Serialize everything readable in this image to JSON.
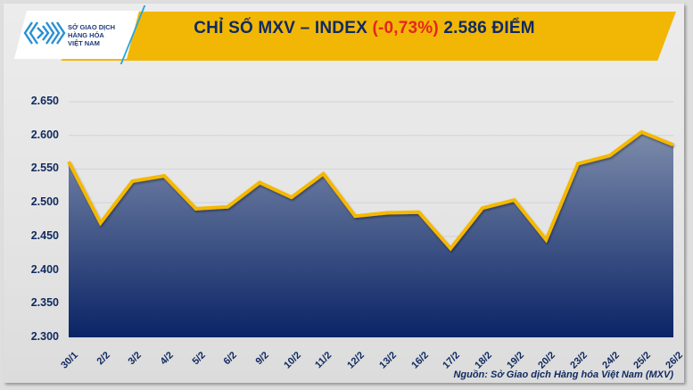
{
  "header": {
    "logo_text": [
      "SỞ GIAO DỊCH",
      "HÀNG HÓA",
      "VIỆT NAM"
    ],
    "title_prefix": "CHỈ SỐ MXV – INDEX",
    "title_change": "(-0,73%)",
    "title_suffix": "2.586 ĐIỂM"
  },
  "footer": {
    "source": "Nguồn: Sở Giao dịch Hàng hóa Việt Nam (MXV)"
  },
  "colors": {
    "banner": "#f2b705",
    "title": "#102a60",
    "negative": "#e52421",
    "line": "#f5b800",
    "area_top": "#7d8cab",
    "area_bottom": "#0a2466"
  },
  "chart_data": {
    "type": "area",
    "title": "CHỈ SỐ MXV – INDEX (-0,73%) 2.586 ĐIỂM",
    "xlabel": "",
    "ylabel": "",
    "categories": [
      "30/1",
      "2/2",
      "3/2",
      "4/2",
      "5/2",
      "6/2",
      "9/2",
      "10/2",
      "11/2",
      "12/2",
      "13/2",
      "16/2",
      "17/2",
      "18/2",
      "19/2",
      "20/2",
      "23/2",
      "24/2",
      "25/2",
      "26/2"
    ],
    "series": [
      {
        "name": "MXV-Index",
        "values": [
          2561,
          2470,
          2532,
          2540,
          2491,
          2494,
          2530,
          2508,
          2543,
          2480,
          2485,
          2486,
          2432,
          2492,
          2504,
          2445,
          2558,
          2570,
          2605,
          2586
        ]
      }
    ],
    "y_ticks": [
      "2.300",
      "2.350",
      "2.400",
      "2.450",
      "2.500",
      "2.550",
      "2.600",
      "2.650"
    ],
    "ylim": [
      2300,
      2650
    ],
    "grid": true,
    "legend": "none",
    "annotations": [
      "Nguồn: Sở Giao dịch Hàng hóa Việt Nam (MXV)"
    ]
  }
}
